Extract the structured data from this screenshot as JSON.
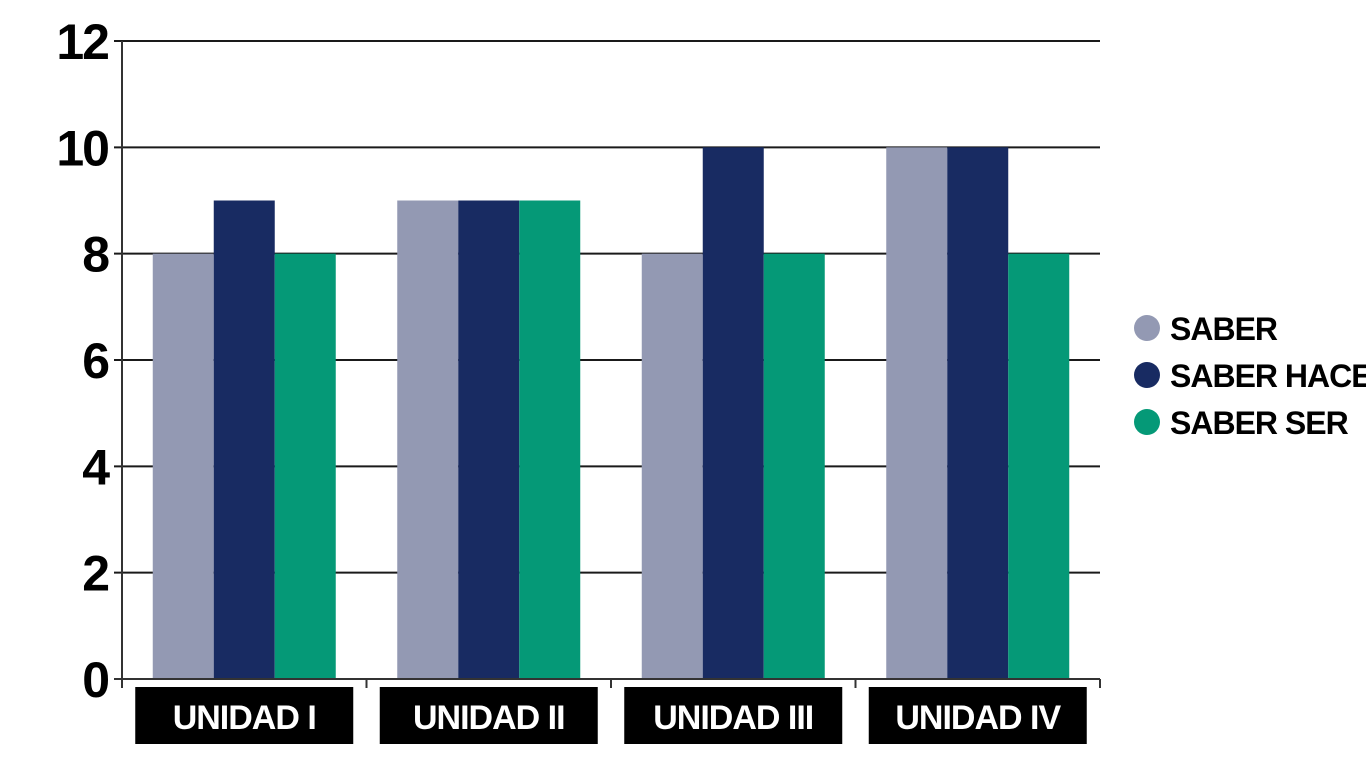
{
  "chart_data": {
    "type": "bar",
    "categories": [
      "UNIDAD I",
      "UNIDAD II",
      "UNIDAD III",
      "UNIDAD IV"
    ],
    "series": [
      {
        "name": "SABER",
        "values": [
          8,
          9,
          8,
          10
        ],
        "color": "#9399b3"
      },
      {
        "name": "SABER HACER",
        "values": [
          9,
          9,
          10,
          10
        ],
        "color": "#182b62"
      },
      {
        "name": "SABER SER",
        "values": [
          8,
          9,
          8,
          8
        ],
        "color": "#059977"
      }
    ],
    "ylim": [
      0,
      12
    ],
    "yticks": [
      0,
      2,
      4,
      6,
      8,
      10,
      12
    ],
    "grid": true,
    "legend_position": "right",
    "category_label_style": "white text on black boxes",
    "gridline_color": "#1a1a1a",
    "category_box_color": "#000000"
  }
}
